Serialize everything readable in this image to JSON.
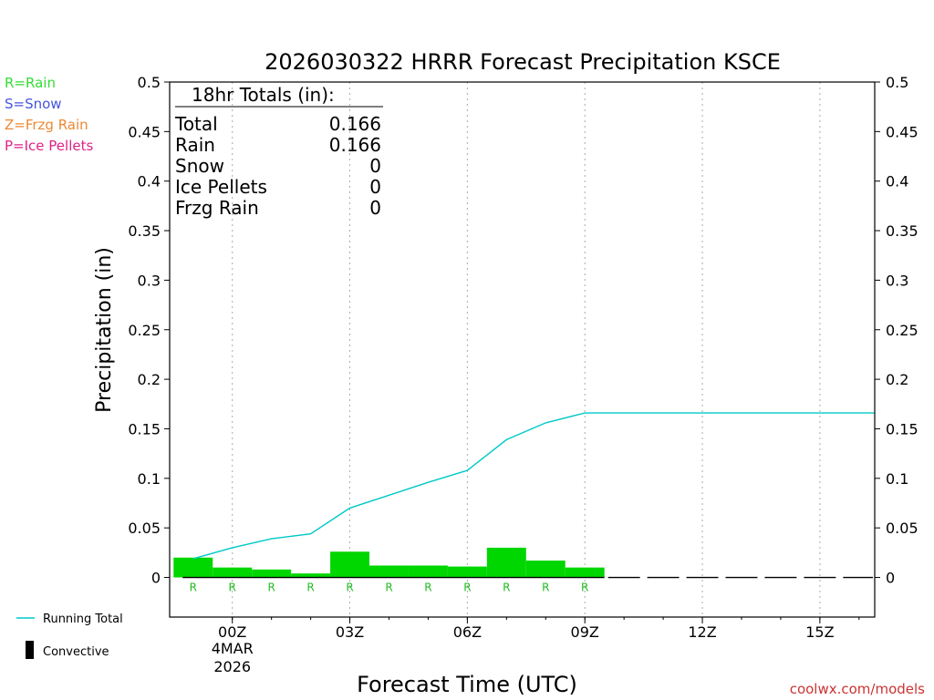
{
  "chart_data": {
    "type": "bar",
    "title": "2026030322 HRRR Forecast Precipitation KSCE",
    "xlabel": "Forecast Time (UTC)",
    "ylabel": "Precipitation (in)",
    "ylim": [
      -0.04,
      0.5
    ],
    "xlim": [
      -1.6,
      16.4
    ],
    "y_ticks": [
      0,
      0.05,
      0.1,
      0.15,
      0.2,
      0.25,
      0.3,
      0.35,
      0.4,
      0.45,
      0.5
    ],
    "y_tick_labels": [
      "0",
      "0.05",
      "0.1",
      "0.15",
      "0.2",
      "0.25",
      "0.3",
      "0.35",
      "0.4",
      "0.45",
      "0.5"
    ],
    "x_ticks": [
      {
        "x": 0,
        "label": "00Z",
        "date_line1": "4MAR",
        "date_line2": "2026"
      },
      {
        "x": 3,
        "label": "03Z"
      },
      {
        "x": 6,
        "label": "06Z"
      },
      {
        "x": 9,
        "label": "09Z"
      },
      {
        "x": 12,
        "label": "12Z"
      },
      {
        "x": 15,
        "label": "15Z"
      }
    ],
    "minor_grid_x": [
      0,
      1,
      2,
      3,
      4,
      5,
      6,
      7,
      8,
      9,
      10,
      11,
      12,
      13,
      14,
      15,
      16
    ],
    "hourly_precip": [
      {
        "hour": -1,
        "value": 0.02,
        "type": "R"
      },
      {
        "hour": 0,
        "value": 0.01,
        "type": "R"
      },
      {
        "hour": 1,
        "value": 0.008,
        "type": "R"
      },
      {
        "hour": 2,
        "value": 0.004,
        "type": "R"
      },
      {
        "hour": 3,
        "value": 0.026,
        "type": "R"
      },
      {
        "hour": 4,
        "value": 0.012,
        "type": "R"
      },
      {
        "hour": 5,
        "value": 0.012,
        "type": "R"
      },
      {
        "hour": 6,
        "value": 0.011,
        "type": "R"
      },
      {
        "hour": 7,
        "value": 0.03,
        "type": "R"
      },
      {
        "hour": 8,
        "value": 0.017,
        "type": "R"
      },
      {
        "hour": 9,
        "value": 0.01,
        "type": "R"
      }
    ],
    "zero_hours": [
      10,
      11,
      12,
      13,
      14,
      15,
      16
    ],
    "running_total": {
      "name": "Running Total",
      "x": [
        -1,
        0,
        1,
        2,
        3,
        4,
        5,
        6,
        7,
        8,
        9,
        16.4
      ],
      "y": [
        0.019,
        0.03,
        0.039,
        0.044,
        0.07,
        0.083,
        0.096,
        0.108,
        0.139,
        0.156,
        0.166,
        0.166
      ]
    },
    "totals_box": {
      "title": "18hr Totals (in):",
      "rows": [
        {
          "label": "Total",
          "value": "0.166"
        },
        {
          "label": "Rain",
          "value": "0.166"
        },
        {
          "label": "Snow",
          "value": "0"
        },
        {
          "label": "Ice Pellets",
          "value": "0"
        },
        {
          "label": "Frzg Rain",
          "value": "0"
        }
      ]
    },
    "type_legend": [
      {
        "text": "R=Rain",
        "color": "#33dd33"
      },
      {
        "text": "S=Snow",
        "color": "#4455dd"
      },
      {
        "text": "Z=Frzg Rain",
        "color": "#ee8833"
      },
      {
        "text": "P=Ice Pellets",
        "color": "#dd2288"
      }
    ],
    "bottom_legend": [
      {
        "key": "running_total",
        "text": "Running Total",
        "color": "#00c8c8"
      },
      {
        "key": "convective",
        "text": "Convective",
        "color": "#000000"
      }
    ],
    "colors": {
      "bar": "#00d600",
      "line": "#00c8c8",
      "marker": "#22bb22",
      "grid": "#aaaaaa",
      "watermark": "#cc3333"
    },
    "grid": "vertical-dotted",
    "watermark": "coolwx.com/models"
  }
}
